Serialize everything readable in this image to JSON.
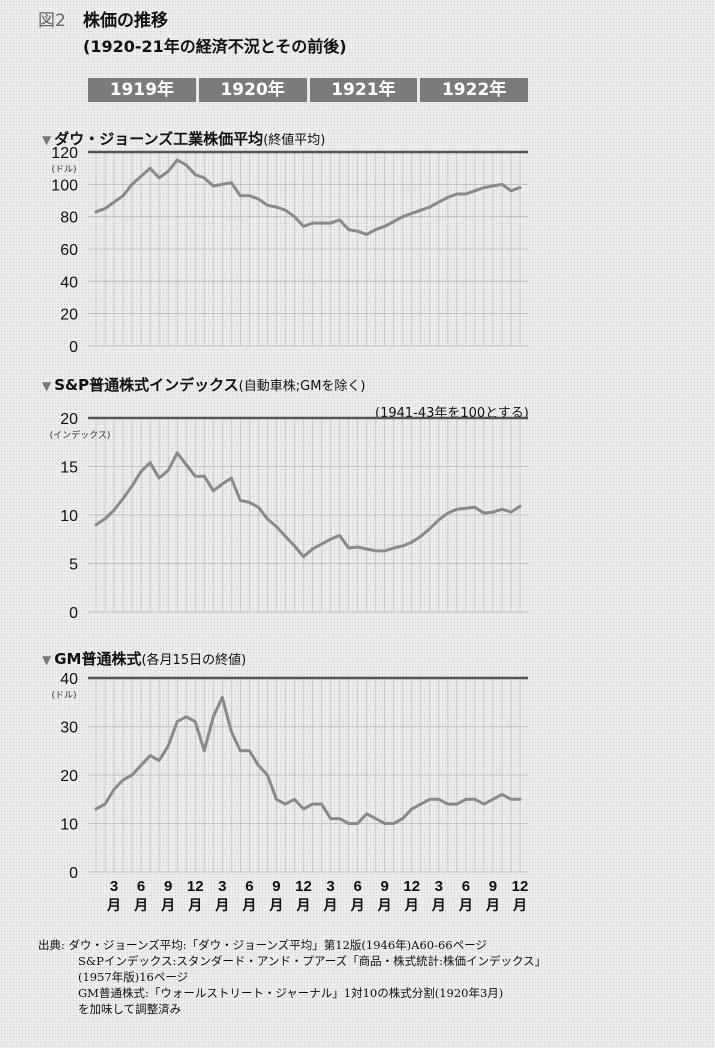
{
  "figure": {
    "number": "図2",
    "title": "株価の推移",
    "subtitle": "(1920-21年の経済不況とその前後)"
  },
  "years": [
    "1919年",
    "1920年",
    "1921年",
    "1922年"
  ],
  "x_tick_numbers": [
    "3",
    "6",
    "9",
    "12",
    "3",
    "6",
    "9",
    "12",
    "3",
    "6",
    "9",
    "12",
    "3",
    "6",
    "9",
    "12"
  ],
  "x_tick_unit": "月",
  "colors": {
    "line": "#8a8a8a",
    "grid": "#b8b8b8",
    "topline": "#555555",
    "year_bar": "#7b7b7b"
  },
  "panels": {
    "dow": {
      "title": "ダウ・ジョーンズ工業株価平均",
      "subtitle": "(終値平均)",
      "unit": "(ドル)"
    },
    "sp": {
      "title": "S&P普通株式インデックス",
      "subtitle": "(自動車株;GMを除く)",
      "unit": "(インデックス)",
      "note": "(1941-43年を100とする)"
    },
    "gm": {
      "title": "GM普通株式",
      "subtitle": "(各月15日の終値)",
      "unit": "(ドル)"
    }
  },
  "source": {
    "line1": "出典: ダウ・ジョーンズ平均:「ダウ・ジョーンズ平均」第12版(1946年)A60-66ページ",
    "line2": "S&Pインデックス:スタンダード・アンド・プアーズ「商品・株式統計:株価インデックス」",
    "line3": "(1957年版)16ページ",
    "line4": "GM普通株式:「ウォールストリート・ジャーナル」1対10の株式分割(1920年3月)",
    "line5": "を加味して調整済み"
  },
  "chart_data": [
    {
      "type": "line",
      "title": "ダウ・ジョーンズ工業株価平均",
      "ylabel": "(ドル)",
      "ylim": [
        0,
        120
      ],
      "yticks": [
        0,
        20,
        40,
        60,
        80,
        100,
        120
      ],
      "x": [
        "1919-01",
        "1919-02",
        "1919-03",
        "1919-04",
        "1919-05",
        "1919-06",
        "1919-07",
        "1919-08",
        "1919-09",
        "1919-10",
        "1919-11",
        "1919-12",
        "1920-01",
        "1920-02",
        "1920-03",
        "1920-04",
        "1920-05",
        "1920-06",
        "1920-07",
        "1920-08",
        "1920-09",
        "1920-10",
        "1920-11",
        "1920-12",
        "1921-01",
        "1921-02",
        "1921-03",
        "1921-04",
        "1921-05",
        "1921-06",
        "1921-07",
        "1921-08",
        "1921-09",
        "1921-10",
        "1921-11",
        "1921-12",
        "1922-01",
        "1922-02",
        "1922-03",
        "1922-04",
        "1922-05",
        "1922-06",
        "1922-07",
        "1922-08",
        "1922-09",
        "1922-10",
        "1922-11",
        "1922-12"
      ],
      "series": [
        {
          "values": [
            83,
            85,
            89,
            93,
            100,
            105,
            110,
            104,
            108,
            115,
            112,
            106,
            104,
            99,
            100,
            101,
            93,
            93,
            91,
            87,
            86,
            84,
            80,
            74,
            76,
            76,
            76,
            78,
            72,
            71,
            69,
            72,
            74,
            77,
            80,
            82,
            84,
            86,
            89,
            92,
            94,
            94,
            96,
            98,
            99,
            100,
            96,
            98
          ]
        }
      ],
      "grid": true
    },
    {
      "type": "line",
      "title": "S&P普通株式インデックス",
      "ylabel": "(インデックス)",
      "ylim": [
        0,
        20
      ],
      "yticks": [
        0,
        5,
        10,
        15,
        20
      ],
      "x": [
        "1919-01",
        "1919-02",
        "1919-03",
        "1919-04",
        "1919-05",
        "1919-06",
        "1919-07",
        "1919-08",
        "1919-09",
        "1919-10",
        "1919-11",
        "1919-12",
        "1920-01",
        "1920-02",
        "1920-03",
        "1920-04",
        "1920-05",
        "1920-06",
        "1920-07",
        "1920-08",
        "1920-09",
        "1920-10",
        "1920-11",
        "1920-12",
        "1921-01",
        "1921-02",
        "1921-03",
        "1921-04",
        "1921-05",
        "1921-06",
        "1921-07",
        "1921-08",
        "1921-09",
        "1921-10",
        "1921-11",
        "1921-12",
        "1922-01",
        "1922-02",
        "1922-03",
        "1922-04",
        "1922-05",
        "1922-06",
        "1922-07",
        "1922-08",
        "1922-09",
        "1922-10",
        "1922-11",
        "1922-12"
      ],
      "series": [
        {
          "values": [
            9.0,
            9.6,
            10.5,
            11.7,
            13.0,
            14.5,
            15.4,
            13.8,
            14.6,
            16.4,
            15.2,
            14.0,
            14.0,
            12.5,
            13.2,
            13.8,
            11.5,
            11.3,
            10.8,
            9.6,
            8.8,
            7.8,
            6.8,
            5.7,
            6.5,
            7.0,
            7.5,
            7.9,
            6.6,
            6.7,
            6.5,
            6.3,
            6.3,
            6.6,
            6.8,
            7.2,
            7.8,
            8.6,
            9.5,
            10.2,
            10.6,
            10.7,
            10.8,
            10.2,
            10.3,
            10.6,
            10.3,
            10.9
          ]
        }
      ],
      "grid": true
    },
    {
      "type": "line",
      "title": "GM普通株式",
      "ylabel": "(ドル)",
      "ylim": [
        0,
        40
      ],
      "yticks": [
        0,
        10,
        20,
        30,
        40
      ],
      "x": [
        "1919-01",
        "1919-02",
        "1919-03",
        "1919-04",
        "1919-05",
        "1919-06",
        "1919-07",
        "1919-08",
        "1919-09",
        "1919-10",
        "1919-11",
        "1919-12",
        "1920-01",
        "1920-02",
        "1920-03",
        "1920-04",
        "1920-05",
        "1920-06",
        "1920-07",
        "1920-08",
        "1920-09",
        "1920-10",
        "1920-11",
        "1920-12",
        "1921-01",
        "1921-02",
        "1921-03",
        "1921-04",
        "1921-05",
        "1921-06",
        "1921-07",
        "1921-08",
        "1921-09",
        "1921-10",
        "1921-11",
        "1921-12",
        "1922-01",
        "1922-02",
        "1922-03",
        "1922-04",
        "1922-05",
        "1922-06",
        "1922-07",
        "1922-08",
        "1922-09",
        "1922-10",
        "1922-11",
        "1922-12"
      ],
      "series": [
        {
          "values": [
            13,
            14,
            17,
            19,
            20,
            22,
            24,
            23,
            26,
            31,
            32,
            31,
            25,
            32,
            36,
            29,
            25,
            25,
            22,
            20,
            15,
            14,
            15,
            13,
            14,
            14,
            11,
            11,
            10,
            10,
            12,
            11,
            10,
            10,
            11,
            13,
            14,
            15,
            15,
            14,
            14,
            15,
            15,
            14,
            15,
            16,
            15,
            15
          ]
        }
      ],
      "grid": true
    }
  ]
}
